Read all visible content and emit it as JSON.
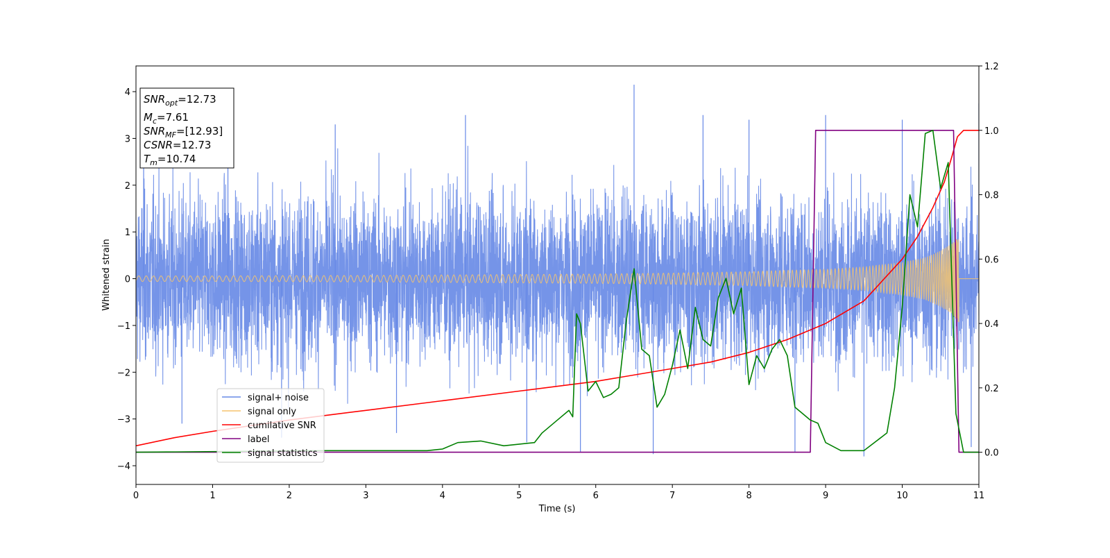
{
  "chart_data": {
    "type": "line",
    "title": "",
    "xlabel": "Time (s)",
    "ylabel": "Whitened strain",
    "xlim": [
      0,
      11
    ],
    "ylim": [
      -4.4,
      4.55
    ],
    "y2lim": [
      -0.1,
      1.2
    ],
    "xticks": [
      "0",
      "1",
      "2",
      "3",
      "4",
      "5",
      "6",
      "7",
      "8",
      "9",
      "10",
      "11"
    ],
    "yticks": [
      "−4",
      "−3",
      "−2",
      "−1",
      "0",
      "1",
      "2",
      "3",
      "4"
    ],
    "y2ticks": [
      "0.0",
      "0.2",
      "0.4",
      "0.6",
      "0.8",
      "1.0",
      "1.2"
    ],
    "grid": false,
    "legend_position": "lower-left",
    "info_box": {
      "snr_opt": {
        "name": "SNR",
        "sub": "opt",
        "value": "=12.73"
      },
      "mc": {
        "name": "M",
        "sub": "c",
        "value": "=7.61"
      },
      "snr_mf": {
        "name": "SNR",
        "sub": "MF",
        "value": "=[12.93]"
      },
      "csnr": {
        "name": "CSNR",
        "value": "=12.73"
      },
      "tm": {
        "name": "T",
        "sub": "m",
        "value": "=10.74"
      }
    },
    "series": [
      {
        "name": "signal+ noise",
        "color": "#6688e6",
        "axis": "left",
        "description_values": {
          "noise_sigma": 1.0,
          "x_start": 0,
          "x_end": 11
        },
        "x": [
          0.1,
          0.6,
          1.2,
          1.9,
          2.6,
          3.4,
          4.3,
          5.1,
          5.8,
          6.5,
          6.75,
          7.4,
          8.0,
          8.6,
          9.0,
          9.5,
          10.0,
          10.9,
          11.0
        ],
        "y": [
          2.9,
          -3.1,
          3.5,
          -3.4,
          3.3,
          -3.3,
          3.5,
          -3.5,
          -3.7,
          4.15,
          -3.75,
          3.5,
          3.4,
          -3.7,
          3.5,
          -3.8,
          3.4,
          -3.6,
          3.75
        ]
      },
      {
        "name": "signal only",
        "color": "#f5c46e",
        "axis": "left",
        "x": [
          0,
          1,
          2,
          3,
          4,
          5,
          6,
          7,
          8,
          8.5,
          9,
          9.5,
          10,
          10.3,
          10.5,
          10.65,
          10.74
        ],
        "y": [
          0.06,
          0.06,
          0.065,
          0.07,
          0.08,
          0.09,
          0.1,
          0.12,
          0.15,
          0.18,
          0.2,
          0.25,
          0.35,
          0.45,
          0.6,
          0.75,
          0.95
        ]
      },
      {
        "name": "cumilative SNR",
        "color": "#ff0000",
        "axis": "right",
        "x": [
          0,
          0.5,
          1,
          2,
          3,
          4,
          5,
          6,
          7,
          7.5,
          8,
          8.5,
          9,
          9.5,
          10,
          10.2,
          10.4,
          10.55,
          10.65,
          10.72,
          10.8,
          11.0
        ],
        "y": [
          0.02,
          0.045,
          0.065,
          0.1,
          0.13,
          0.16,
          0.19,
          0.22,
          0.26,
          0.28,
          0.31,
          0.35,
          0.4,
          0.47,
          0.6,
          0.67,
          0.76,
          0.84,
          0.92,
          0.98,
          1.0,
          1.0
        ]
      },
      {
        "name": "label",
        "color": "#800080",
        "axis": "right",
        "x": [
          0,
          8.8,
          8.87,
          10.67,
          10.74,
          11.0
        ],
        "y": [
          0.0,
          0.0,
          1.0,
          1.0,
          0.0,
          0.0
        ]
      },
      {
        "name": "signal statistics",
        "color": "#008000",
        "axis": "right",
        "x": [
          0,
          2.5,
          3.8,
          4.0,
          4.2,
          4.5,
          4.8,
          5.2,
          5.3,
          5.5,
          5.65,
          5.7,
          5.75,
          5.8,
          5.9,
          6.0,
          6.1,
          6.2,
          6.3,
          6.4,
          6.5,
          6.6,
          6.7,
          6.8,
          6.9,
          7.0,
          7.1,
          7.2,
          7.3,
          7.4,
          7.5,
          7.6,
          7.7,
          7.8,
          7.9,
          8.0,
          8.1,
          8.2,
          8.3,
          8.4,
          8.5,
          8.6,
          8.7,
          8.8,
          8.9,
          9.0,
          9.2,
          9.5,
          9.8,
          9.9,
          10.0,
          10.1,
          10.2,
          10.3,
          10.4,
          10.5,
          10.6,
          10.7,
          10.8,
          11.0
        ],
        "y": [
          0.0,
          0.005,
          0.005,
          0.01,
          0.03,
          0.035,
          0.02,
          0.03,
          0.06,
          0.1,
          0.13,
          0.11,
          0.43,
          0.4,
          0.19,
          0.22,
          0.17,
          0.18,
          0.2,
          0.41,
          0.57,
          0.32,
          0.3,
          0.14,
          0.18,
          0.27,
          0.38,
          0.26,
          0.45,
          0.35,
          0.33,
          0.48,
          0.54,
          0.43,
          0.51,
          0.21,
          0.3,
          0.26,
          0.32,
          0.35,
          0.3,
          0.14,
          0.12,
          0.1,
          0.09,
          0.03,
          0.005,
          0.005,
          0.06,
          0.2,
          0.45,
          0.8,
          0.7,
          0.99,
          1.0,
          0.82,
          0.9,
          0.12,
          0.0,
          0.0
        ]
      }
    ]
  }
}
